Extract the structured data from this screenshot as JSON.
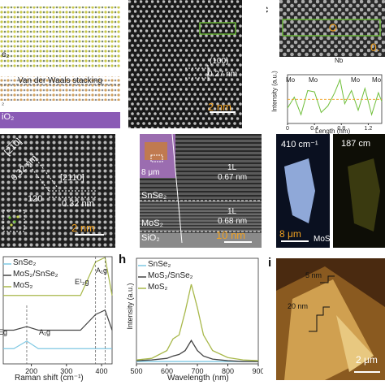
{
  "panels": {
    "a": {
      "letter": "",
      "layer_label": "e₂",
      "stacking_label": "Van der Waals stacking",
      "substrate_label": "iO₂",
      "small_label": "₂"
    },
    "b": {
      "letter": "b",
      "spacing": "0.27 nm",
      "plane": "(100)",
      "scale": "2 nm"
    },
    "c": {
      "letter": "c",
      "corner_label": "0.",
      "nb_label": "Nb",
      "ylabel": "Intensity (a.u.)",
      "xlabel": "Length (nm)",
      "peak_labels": [
        "Mo",
        "Mo",
        "Mo",
        "Mo"
      ],
      "x_ticks": [
        "0",
        "0.4",
        "0.8",
        "1.2"
      ]
    },
    "d": {
      "letter": "",
      "dir1": "[2̅1̅0]",
      "dir2": "[2110]",
      "spacing1": "0.32 nm",
      "spacing2": "0.32 nm",
      "angle": "120",
      "scale": "2 nm"
    },
    "e": {
      "letter": "e",
      "inset_scale": "8 μm",
      "top_layer": "1L",
      "top_spacing": "0.67 nm",
      "mid_layer": "1L",
      "mid_spacing": "0.68 nm",
      "mat1": "SnSe₂",
      "mat2": "MoS₂",
      "sub": "SiO₂",
      "scale": "10 nm"
    },
    "f": {
      "letter": "f",
      "wn1": "410 cm⁻¹",
      "wn2": "187 cm",
      "scale": "8 μm",
      "mat": "MoS₂"
    },
    "g": {
      "letter": "",
      "xlabel": "Raman shift (cm⁻¹)",
      "legend": [
        "SnSe₂",
        "MoS₂/SnSe₂",
        "MoS₂"
      ],
      "x_ticks": [
        "200",
        "300",
        "400"
      ],
      "peak_e2g": "E¹₂g",
      "peak_a1g": "A₁g",
      "peak_a1g_small": "A₁g",
      "peak_eg": "Eg"
    },
    "h": {
      "letter": "h",
      "ylabel": "Intensity (a.u.)",
      "xlabel": "Wavelength (nm)",
      "legend": [
        "SnSe₂",
        "MoS₂/SnSe₂",
        "MoS₂"
      ],
      "x_ticks": [
        "500",
        "600",
        "700",
        "800",
        "900"
      ]
    },
    "i": {
      "letter": "i",
      "h1": "5 nm",
      "h2": "20 nm",
      "scale": "2 μm"
    }
  },
  "colors": {
    "snse2": "#7ec8e3",
    "hetero": "#444444",
    "mos2": "#a8b84a",
    "orange": "#f0a020",
    "purple": "#8a5bb5",
    "green_box": "#6fbf3a"
  },
  "chart_data": [
    {
      "type": "line",
      "title": "",
      "xlabel": "Length (nm)",
      "ylabel": "Intensity (a.u.)",
      "xlim": [
        0,
        1.4
      ],
      "series": [
        {
          "name": "",
          "x": [
            0,
            0.1,
            0.2,
            0.3,
            0.4,
            0.5,
            0.6,
            0.7,
            0.78,
            0.85,
            0.95,
            1.05,
            1.15,
            1.25,
            1.35,
            1.4
          ],
          "y": [
            0.35,
            0.6,
            0.2,
            0.75,
            0.72,
            0.25,
            0.4,
            0.7,
            1.0,
            0.45,
            0.75,
            0.3,
            0.8,
            0.2,
            0.7,
            0.5
          ]
        }
      ]
    },
    {
      "type": "line",
      "title": "",
      "xlabel": "Raman shift (cm⁻¹)",
      "ylabel": "",
      "xlim": [
        120,
        430
      ],
      "series": [
        {
          "name": "SnSe₂",
          "x": [
            120,
            150,
            187,
            220,
            260,
            300,
            340,
            383,
            410,
            430
          ],
          "y": [
            0.05,
            0.05,
            0.22,
            0.05,
            0.05,
            0.05,
            0.05,
            0.05,
            0.05,
            0.05
          ]
        },
        {
          "name": "MoS₂/SnSe₂",
          "x": [
            120,
            150,
            187,
            220,
            260,
            300,
            340,
            383,
            410,
            430
          ],
          "y": [
            0.1,
            0.1,
            0.18,
            0.1,
            0.1,
            0.1,
            0.1,
            0.45,
            0.55,
            0.1
          ]
        },
        {
          "name": "MoS₂",
          "x": [
            120,
            150,
            187,
            220,
            260,
            300,
            340,
            383,
            410,
            430
          ],
          "y": [
            0.15,
            0.15,
            0.15,
            0.15,
            0.15,
            0.15,
            0.15,
            0.9,
            1.0,
            0.15
          ]
        }
      ]
    },
    {
      "type": "line",
      "title": "",
      "xlabel": "Wavelength (nm)",
      "ylabel": "Intensity (a.u.)",
      "xlim": [
        500,
        900
      ],
      "series": [
        {
          "name": "SnSe₂",
          "x": [
            500,
            550,
            600,
            620,
            640,
            660,
            680,
            700,
            720,
            750,
            800,
            850,
            900
          ],
          "y": [
            0.01,
            0.01,
            0.01,
            0.01,
            0.01,
            0.01,
            0.01,
            0.01,
            0.01,
            0.01,
            0.01,
            0.01,
            0.01
          ]
        },
        {
          "name": "MoS₂/SnSe₂",
          "x": [
            500,
            550,
            600,
            620,
            640,
            660,
            680,
            700,
            720,
            750,
            800,
            850,
            900
          ],
          "y": [
            0.02,
            0.03,
            0.05,
            0.08,
            0.1,
            0.15,
            0.28,
            0.15,
            0.08,
            0.04,
            0.02,
            0.01,
            0.01
          ]
        },
        {
          "name": "MoS₂",
          "x": [
            500,
            550,
            600,
            620,
            640,
            660,
            680,
            700,
            720,
            750,
            800,
            850,
            900
          ],
          "y": [
            0.03,
            0.05,
            0.15,
            0.3,
            0.35,
            0.65,
            1.0,
            0.7,
            0.35,
            0.15,
            0.06,
            0.03,
            0.02
          ]
        }
      ]
    }
  ]
}
